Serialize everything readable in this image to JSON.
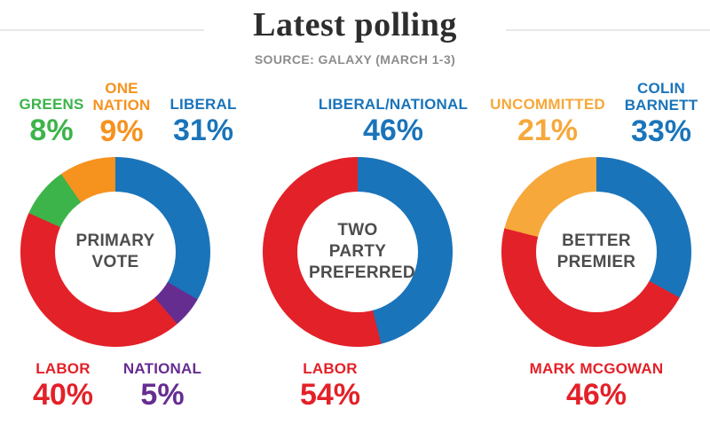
{
  "header": {
    "title": "Latest polling",
    "source": "SOURCE: GALAXY (MARCH 1-3)"
  },
  "colors": {
    "liberal_blue": "#1a74ba",
    "labor_red": "#e32128",
    "greens_green": "#3cb44a",
    "one_nation_orange": "#f6921e",
    "uncommitted_amber": "#f6a83b",
    "national_purple": "#662d91",
    "title_dark": "#2d2d2d",
    "source_gray": "#8d8d8d",
    "center_label_gray": "#4d4d4d",
    "divider_gray": "#e9e9e9"
  },
  "chart_data": [
    {
      "type": "pie",
      "variant": "donut",
      "title": "PRIMARY VOTE",
      "unit": "%",
      "order": "clockwise from 12 o'clock, scaled to full circle",
      "segments": [
        {
          "label": "LIBERAL",
          "value": 31,
          "display": "31%",
          "color": "liberal_blue"
        },
        {
          "label": "NATIONAL",
          "value": 5,
          "display": "5%",
          "color": "national_purple"
        },
        {
          "label": "LABOR",
          "value": 40,
          "display": "40%",
          "color": "labor_red"
        },
        {
          "label": "GREENS",
          "value": 8,
          "display": "8%",
          "color": "greens_green"
        },
        {
          "label": "ONE NATION",
          "value": 9,
          "display": "9%",
          "color": "one_nation_orange"
        }
      ]
    },
    {
      "type": "pie",
      "variant": "donut",
      "title": "TWO PARTY PREFERRED",
      "unit": "%",
      "order": "clockwise from 12 o'clock",
      "segments": [
        {
          "label": "LIBERAL/NATIONAL",
          "value": 46,
          "display": "46%",
          "color": "liberal_blue"
        },
        {
          "label": "LABOR",
          "value": 54,
          "display": "54%",
          "color": "labor_red"
        }
      ]
    },
    {
      "type": "pie",
      "variant": "donut",
      "title": "BETTER PREMIER",
      "unit": "%",
      "order": "clockwise from 12 o'clock",
      "segments": [
        {
          "label": "COLIN BARNETT",
          "value": 33,
          "display": "33%",
          "color": "liberal_blue"
        },
        {
          "label": "MARK MCGOWAN",
          "value": 46,
          "display": "46%",
          "color": "labor_red"
        },
        {
          "label": "UNCOMMITTED",
          "value": 21,
          "display": "21%",
          "color": "uncommitted_amber"
        }
      ]
    }
  ]
}
